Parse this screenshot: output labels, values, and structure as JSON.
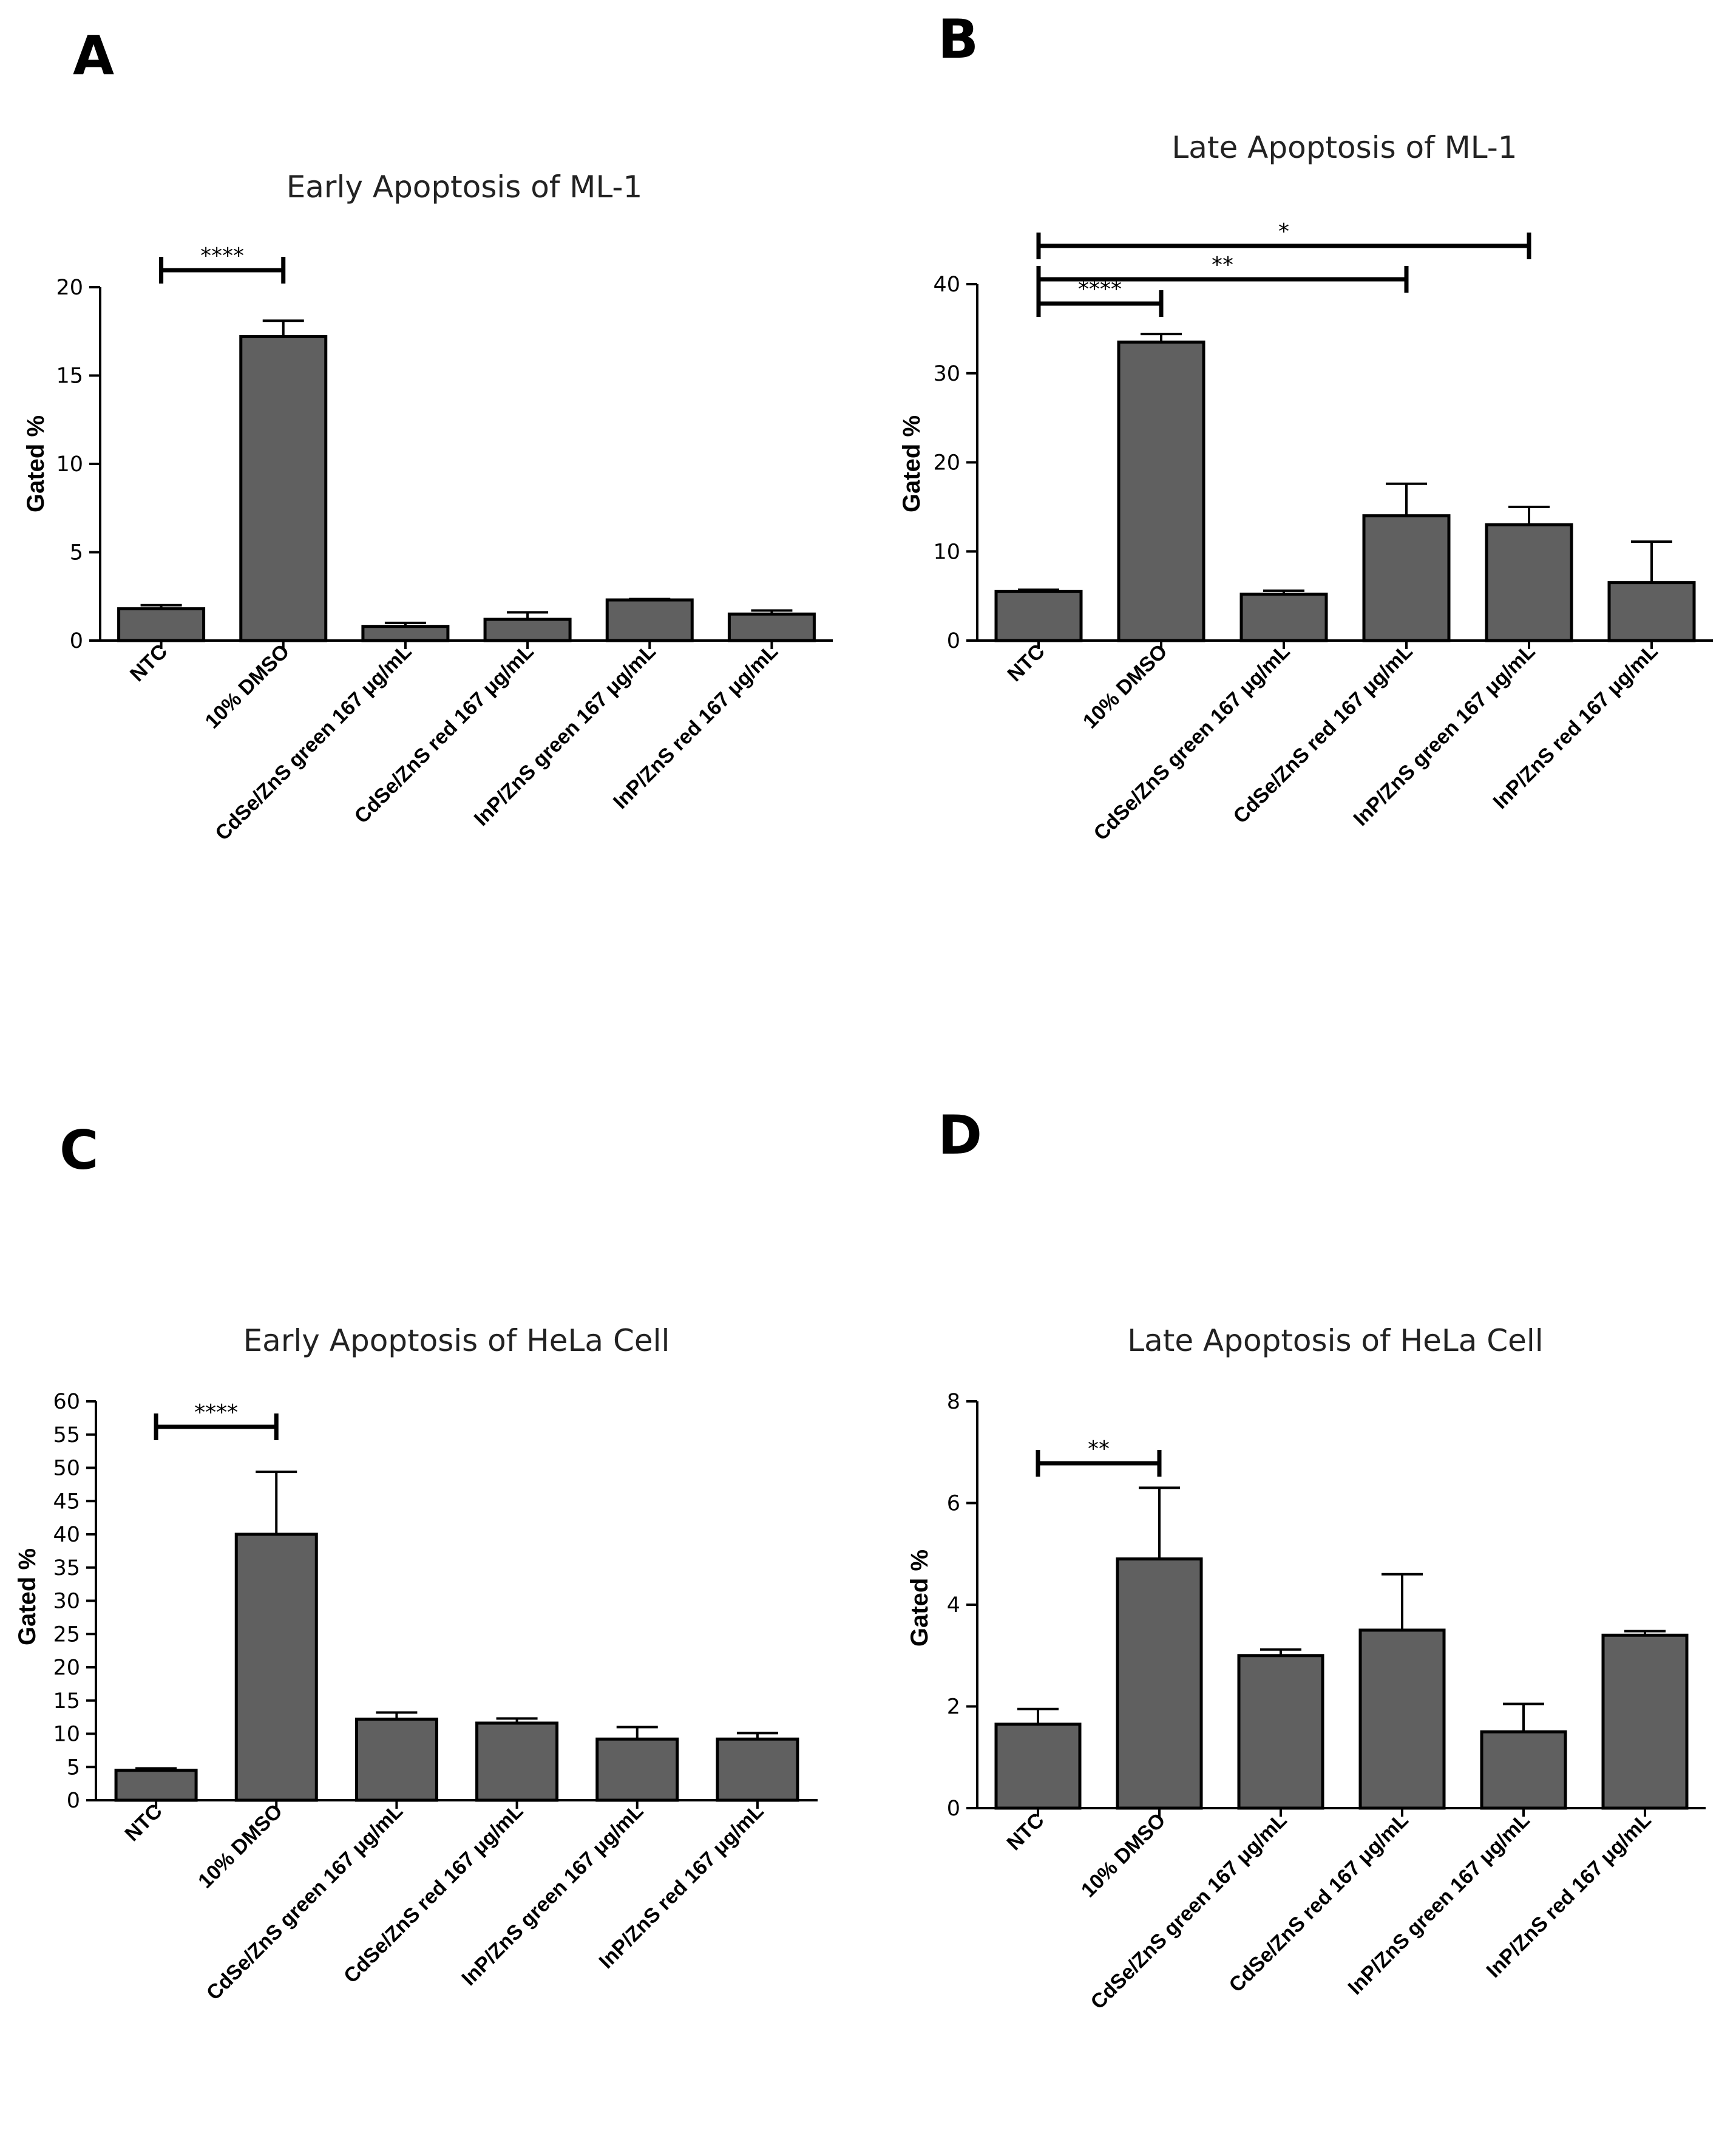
{
  "figure": {
    "panels": [
      "A",
      "B",
      "C",
      "D"
    ]
  },
  "chart_data": [
    {
      "type": "bar",
      "title": "Early Apoptosis of ML-1",
      "xlabel": "",
      "ylabel": "Gated %",
      "ylim": [
        0,
        20
      ],
      "yticks": [
        0,
        5,
        10,
        15,
        20
      ],
      "categories": [
        "NTC",
        "10% DMSO",
        "CdSe/ZnS green 167 μg/mL",
        "CdSe/ZnS red 167 μg/mL",
        "InP/ZnS green 167 μg/mL",
        "InP/ZnS red 167 μg/mL"
      ],
      "values": [
        1.8,
        17.2,
        0.8,
        1.2,
        2.3,
        1.5
      ],
      "errors": [
        0.2,
        0.9,
        0.2,
        0.4,
        0.05,
        0.2
      ],
      "significance": [
        {
          "from": 0,
          "to": 1,
          "label": "****"
        }
      ],
      "color": "#606060"
    },
    {
      "type": "bar",
      "title": "Late Apoptosis of ML-1",
      "xlabel": "",
      "ylabel": "Gated %",
      "ylim": [
        0,
        40
      ],
      "yticks": [
        0,
        10,
        20,
        30,
        40
      ],
      "categories": [
        "NTC",
        "10% DMSO",
        "CdSe/ZnS green 167 μg/mL",
        "CdSe/ZnS red 167 μg/mL",
        "InP/ZnS green 167 μg/mL",
        "InP/ZnS red 167 μg/mL"
      ],
      "values": [
        5.5,
        33.5,
        5.2,
        14.0,
        13.0,
        6.5
      ],
      "errors": [
        0.2,
        0.9,
        0.4,
        3.6,
        2.0,
        4.6
      ],
      "significance": [
        {
          "from": 0,
          "to": 1,
          "label": "****"
        },
        {
          "from": 0,
          "to": 3,
          "label": "**"
        },
        {
          "from": 0,
          "to": 4,
          "label": "*"
        }
      ],
      "color": "#606060"
    },
    {
      "type": "bar",
      "title": "Early Apoptosis of HeLa Cell",
      "xlabel": "",
      "ylabel": "Gated %",
      "ylim": [
        0,
        60
      ],
      "yticks": [
        0,
        5,
        10,
        15,
        20,
        25,
        30,
        35,
        40,
        45,
        50,
        55,
        60
      ],
      "categories": [
        "NTC",
        "10% DMSO",
        "CdSe/ZnS green 167 μg/mL",
        "CdSe/ZnS red 167 μg/mL",
        "InP/ZnS green 167 μg/mL",
        "InP/ZnS red 167 μg/mL"
      ],
      "values": [
        4.5,
        40.0,
        12.2,
        11.6,
        9.2,
        9.2
      ],
      "errors": [
        0.3,
        9.4,
        1.0,
        0.7,
        1.8,
        0.9
      ],
      "significance": [
        {
          "from": 0,
          "to": 1,
          "label": "****"
        }
      ],
      "color": "#606060"
    },
    {
      "type": "bar",
      "title": "Late Apoptosis of HeLa Cell",
      "xlabel": "",
      "ylabel": "Gated %",
      "ylim": [
        0,
        8
      ],
      "yticks": [
        0,
        2,
        4,
        6,
        8
      ],
      "categories": [
        "NTC",
        "10% DMSO",
        "CdSe/ZnS green 167 μg/mL",
        "CdSe/ZnS red 167 μg/mL",
        "InP/ZnS green 167 μg/mL",
        "InP/ZnS red 167 μg/mL"
      ],
      "values": [
        1.65,
        4.9,
        3.0,
        3.5,
        1.5,
        3.4
      ],
      "errors": [
        0.3,
        1.4,
        0.12,
        1.1,
        0.55,
        0.08
      ],
      "significance": [
        {
          "from": 0,
          "to": 1,
          "label": "**"
        }
      ],
      "color": "#606060"
    }
  ]
}
